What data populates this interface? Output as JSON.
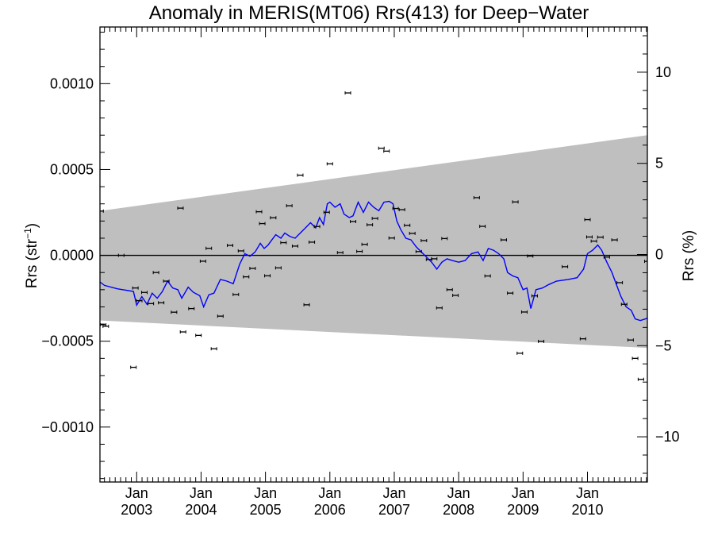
{
  "chart_data": {
    "type": "scatter",
    "title": "Anomaly in MERIS(MT06) Rrs(413) for Deep−Water",
    "ylabel": "Rrs (str",
    "ylabel_sup": "−1",
    "ylabel_close": ")",
    "y2label": "Rrs (%)",
    "xlim": [
      2002.43,
      2010.93
    ],
    "ylim": [
      -0.00132,
      0.00133
    ],
    "y2lim": [
      -12.48,
      12.48
    ],
    "grid": false,
    "yticks": [
      {
        "value": 0.001,
        "label": "0.0010"
      },
      {
        "value": 0.0005,
        "label": "0.0005"
      },
      {
        "value": 0.0,
        "label": "0.0000"
      },
      {
        "value": -0.0005,
        "label": "−0.0005"
      },
      {
        "value": -0.001,
        "label": "−0.0010"
      }
    ],
    "y2ticks": [
      {
        "value": 10,
        "label": "10"
      },
      {
        "value": 5,
        "label": "5"
      },
      {
        "value": 0,
        "label": "0"
      },
      {
        "value": -5,
        "label": "−5"
      },
      {
        "value": -10,
        "label": "−10"
      }
    ],
    "xticks": [
      {
        "value": 2003.0,
        "month": "Jan",
        "year": "2003"
      },
      {
        "value": 2004.0,
        "month": "Jan",
        "year": "2004"
      },
      {
        "value": 2005.0,
        "month": "Jan",
        "year": "2005"
      },
      {
        "value": 2006.0,
        "month": "Jan",
        "year": "2006"
      },
      {
        "value": 2007.0,
        "month": "Jan",
        "year": "2007"
      },
      {
        "value": 2008.0,
        "month": "Jan",
        "year": "2008"
      },
      {
        "value": 2009.0,
        "month": "Jan",
        "year": "2009"
      },
      {
        "value": 2010.0,
        "month": "Jan",
        "year": "2010"
      }
    ],
    "band": {
      "color": "#bfbfbf",
      "upper": [
        [
          2002.43,
          0.000259
        ],
        [
          2010.93,
          0.0007
        ]
      ],
      "lower": [
        [
          2002.43,
          -0.000379
        ],
        [
          2010.93,
          -0.000539
        ]
      ]
    },
    "zero_line": 0.0,
    "points": {
      "color": "#000000",
      "values": [
        [
          2002.44,
          0.000258
        ],
        [
          2002.48,
          -0.000404
        ],
        [
          2002.52,
          -0.000413
        ],
        [
          2002.76,
          0.0
        ],
        [
          2002.95,
          -0.000652
        ],
        [
          2002.98,
          -0.00019
        ],
        [
          2003.04,
          -0.000264
        ],
        [
          2003.12,
          -0.000216
        ],
        [
          2003.22,
          -0.000281
        ],
        [
          2003.3,
          -0.0001
        ],
        [
          2003.38,
          -0.000276
        ],
        [
          2003.46,
          -0.00015
        ],
        [
          2003.58,
          -0.000331
        ],
        [
          2003.68,
          0.000275
        ],
        [
          2003.72,
          -0.000446
        ],
        [
          2003.85,
          -0.00031
        ],
        [
          2003.96,
          -0.000466
        ],
        [
          2004.03,
          -3.4e-05
        ],
        [
          2004.12,
          4.1e-05
        ],
        [
          2004.2,
          -0.000544
        ],
        [
          2004.3,
          -0.000354
        ],
        [
          2004.45,
          5.8e-05
        ],
        [
          2004.54,
          -0.000228
        ],
        [
          2004.62,
          2.6e-05
        ],
        [
          2004.7,
          -0.000125
        ],
        [
          2004.8,
          -7.6e-05
        ],
        [
          2004.9,
          0.000254
        ],
        [
          2004.95,
          0.000185
        ],
        [
          2005.03,
          -0.000119
        ],
        [
          2005.12,
          0.000219
        ],
        [
          2005.2,
          -7.3e-05
        ],
        [
          2005.28,
          7.4e-05
        ],
        [
          2005.37,
          0.000289
        ],
        [
          2005.46,
          5.4e-05
        ],
        [
          2005.54,
          0.000467
        ],
        [
          2005.64,
          -0.000288
        ],
        [
          2005.72,
          7.7e-05
        ],
        [
          2005.8,
          0.000168
        ],
        [
          2005.95,
          0.000251
        ],
        [
          2006.0,
          0.000533
        ],
        [
          2006.16,
          1.6e-05
        ],
        [
          2006.28,
          0.000946
        ],
        [
          2006.36,
          0.000197
        ],
        [
          2006.46,
          2.3e-05
        ],
        [
          2006.54,
          6.4e-05
        ],
        [
          2006.62,
          0.000178
        ],
        [
          2006.7,
          0.000215
        ],
        [
          2006.8,
          0.000624
        ],
        [
          2006.88,
          0.000607
        ],
        [
          2006.96,
          0.000101
        ],
        [
          2007.02,
          0.000273
        ],
        [
          2007.12,
          0.000266
        ],
        [
          2007.2,
          0.000175
        ],
        [
          2007.28,
          0.000128
        ],
        [
          2007.38,
          2.2e-05
        ],
        [
          2007.46,
          8.6e-05
        ],
        [
          2007.54,
          -2.4e-05
        ],
        [
          2007.62,
          -2e-05
        ],
        [
          2007.7,
          -0.000306
        ],
        [
          2007.78,
          9.8e-05
        ],
        [
          2007.86,
          -0.0002
        ],
        [
          2007.95,
          -0.000233
        ],
        [
          2008.28,
          0.000336
        ],
        [
          2008.37,
          0.000169
        ],
        [
          2008.45,
          -0.00012
        ],
        [
          2008.7,
          9e-05
        ],
        [
          2008.8,
          -0.00022
        ],
        [
          2008.88,
          0.000311
        ],
        [
          2008.95,
          -0.00057
        ],
        [
          2009.02,
          -0.00033
        ],
        [
          2009.11,
          -4e-06
        ],
        [
          2009.18,
          -0.000236
        ],
        [
          2009.28,
          -0.000501
        ],
        [
          2009.65,
          -6.6e-05
        ],
        [
          2009.93,
          -0.000486
        ],
        [
          2010.0,
          0.000208
        ],
        [
          2010.03,
          0.000107
        ],
        [
          2010.1,
          8.3e-05
        ],
        [
          2010.2,
          0.000106
        ],
        [
          2010.3,
          -1e-05
        ],
        [
          2010.42,
          9e-05
        ],
        [
          2010.5,
          -0.000159
        ],
        [
          2010.57,
          -0.000285
        ],
        [
          2010.67,
          -0.000493
        ],
        [
          2010.74,
          -0.0006
        ],
        [
          2010.83,
          -0.000722
        ],
        [
          2010.93,
          -3.5e-05
        ]
      ]
    },
    "series": [
      {
        "color": "#0000ff",
        "x": [
          2002.43,
          2002.5,
          2002.7,
          2002.95,
          2003.0,
          2003.08,
          2003.16,
          2003.24,
          2003.32,
          2003.4,
          2003.48,
          2003.56,
          2003.64,
          2003.7,
          2003.8,
          2003.88,
          2003.98,
          2004.04,
          2004.12,
          2004.2,
          2004.3,
          2004.4,
          2004.5,
          2004.6,
          2004.68,
          2004.76,
          2004.84,
          2004.92,
          2004.98,
          2005.04,
          2005.1,
          2005.16,
          2005.24,
          2005.3,
          2005.38,
          2005.46,
          2005.54,
          2005.62,
          2005.7,
          2005.78,
          2005.84,
          2005.9,
          2005.96,
          2006.0,
          2006.08,
          2006.16,
          2006.22,
          2006.3,
          2006.36,
          2006.44,
          2006.52,
          2006.6,
          2006.68,
          2006.76,
          2006.84,
          2006.92,
          2006.98,
          2007.04,
          2007.1,
          2007.18,
          2007.26,
          2007.34,
          2007.42,
          2007.5,
          2007.58,
          2007.66,
          2007.74,
          2007.82,
          2007.9,
          2008.0,
          2008.1,
          2008.2,
          2008.3,
          2008.38,
          2008.46,
          2008.54,
          2008.62,
          2008.7,
          2008.76,
          2008.84,
          2008.92,
          2009.0,
          2009.06,
          2009.12,
          2009.2,
          2009.3,
          2009.4,
          2009.52,
          2009.7,
          2009.84,
          2009.94,
          2010.0,
          2010.08,
          2010.16,
          2010.22,
          2010.3,
          2010.38,
          2010.44,
          2010.52,
          2010.6,
          2010.68,
          2010.74,
          2010.82,
          2010.9,
          2010.93
        ],
        "y": [
          -0.000155,
          -0.000175,
          -0.000195,
          -0.00021,
          -0.00029,
          -0.00024,
          -0.000285,
          -0.00022,
          -0.00025,
          -0.00021,
          -0.00015,
          -0.00019,
          -0.0002,
          -0.00025,
          -0.000185,
          -0.000215,
          -0.000235,
          -0.0003,
          -0.00023,
          -0.00022,
          -0.00014,
          -0.00015,
          -0.000165,
          -5e-05,
          1e-05,
          -5e-06,
          2e-05,
          7e-05,
          4e-05,
          6e-05,
          9e-05,
          0.00012,
          0.0001,
          0.00013,
          0.00011,
          0.0001,
          0.00013,
          0.00016,
          0.00019,
          0.00016,
          0.00022,
          0.00018,
          0.0003,
          0.00031,
          0.00028,
          0.0003,
          0.00024,
          0.00022,
          0.00023,
          0.00031,
          0.00025,
          0.00031,
          0.00028,
          0.00026,
          0.00031,
          0.000315,
          0.0003,
          0.0002,
          0.00015,
          0.0001,
          9e-05,
          5e-05,
          2e-05,
          -1e-05,
          -4e-05,
          -8e-05,
          -4e-05,
          -2e-05,
          -3e-05,
          -4e-05,
          -3e-05,
          1e-05,
          2e-05,
          -3e-05,
          4e-05,
          3e-05,
          1e-05,
          -2e-05,
          -0.0001,
          -0.00012,
          -0.00013,
          -0.0002,
          -0.00019,
          -0.00031,
          -0.0002,
          -0.00019,
          -0.00017,
          -0.00015,
          -0.00014,
          -0.00013,
          -8e-05,
          1e-05,
          3e-05,
          6e-05,
          3e-05,
          -4e-05,
          -0.0001,
          -0.00016,
          -0.00024,
          -0.0003,
          -0.00032,
          -0.00037,
          -0.00038,
          -0.00037,
          -0.000365
        ]
      }
    ]
  }
}
